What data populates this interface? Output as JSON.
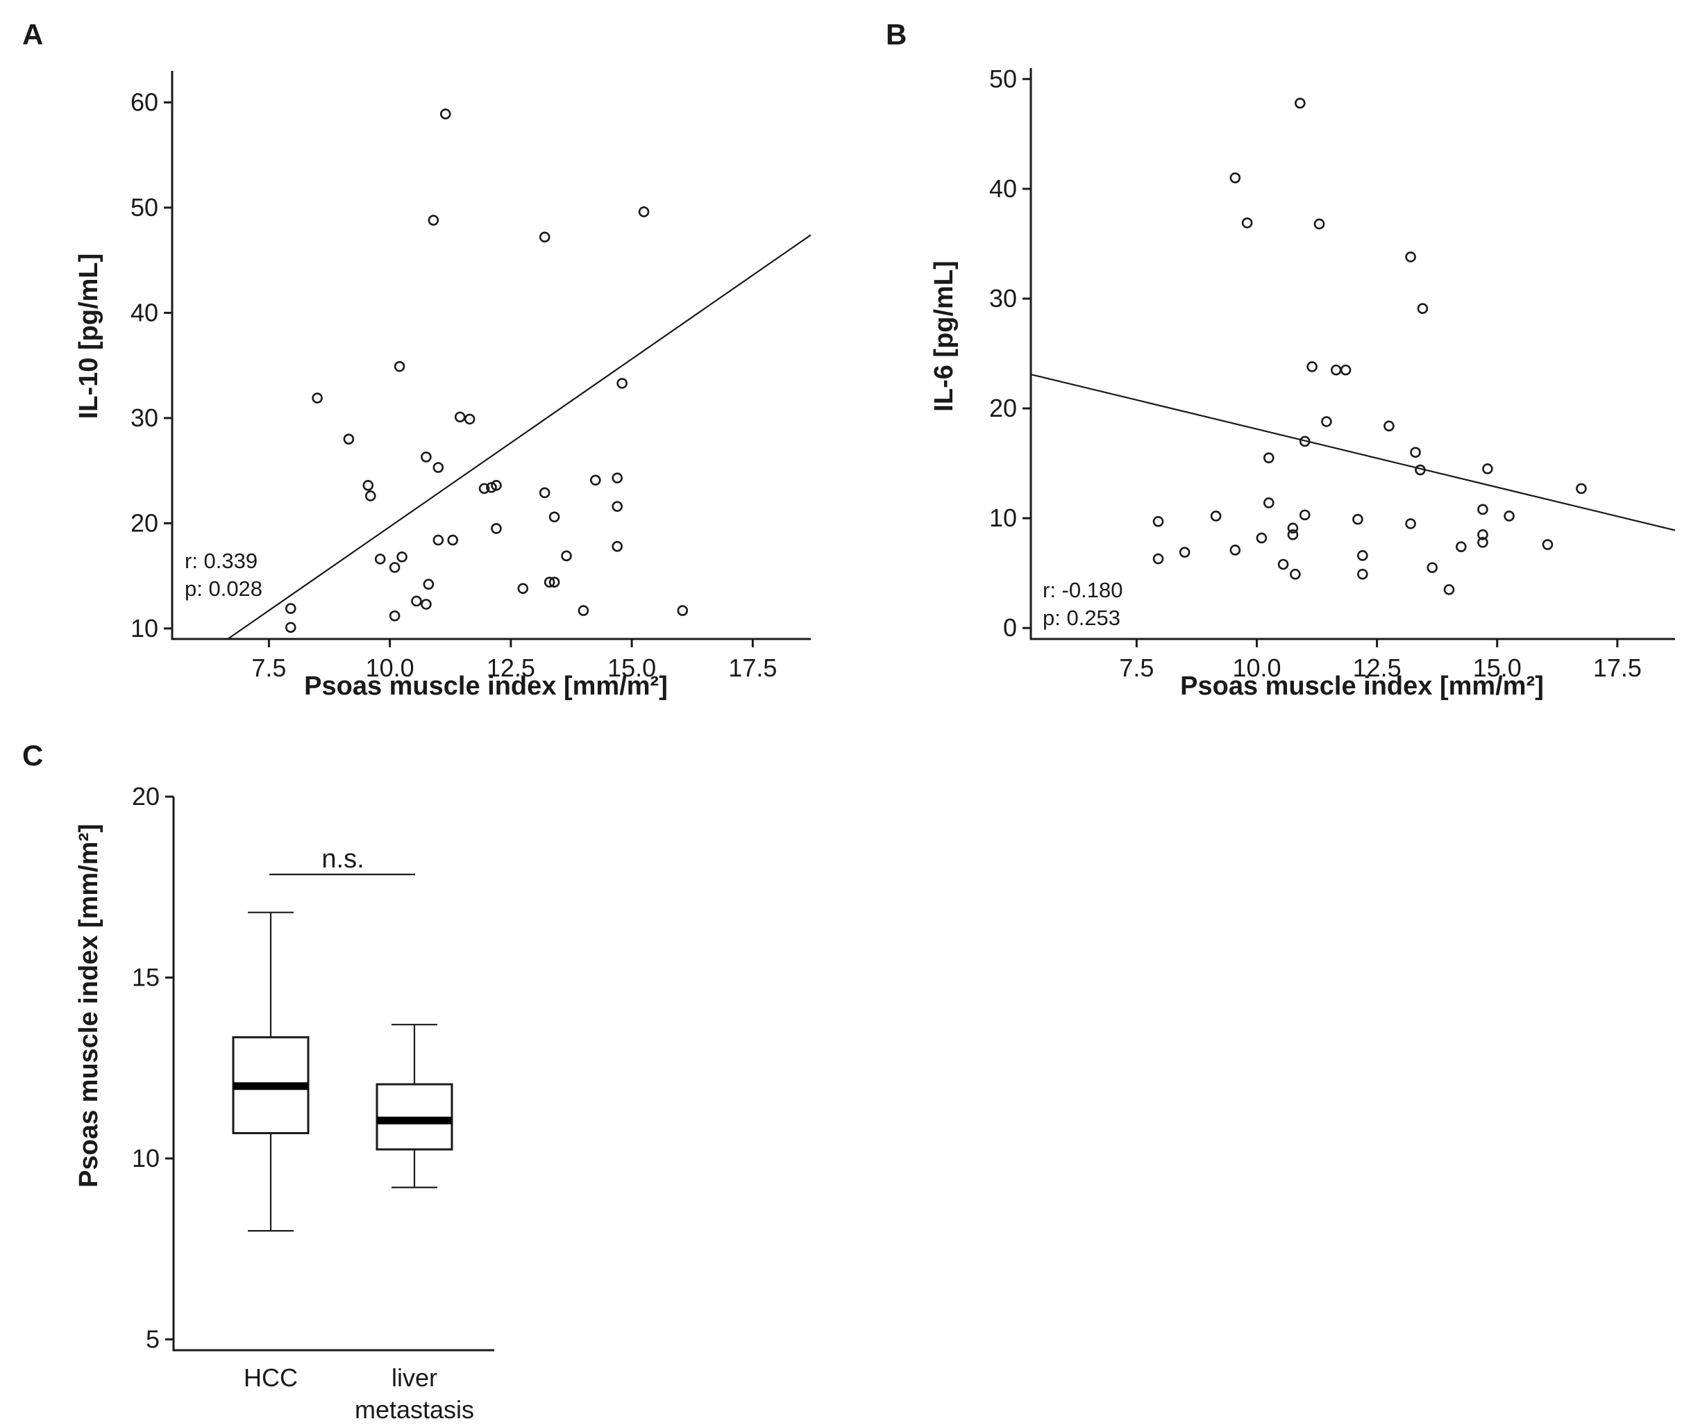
{
  "chart_data": [
    {
      "panel": "A",
      "type": "scatter",
      "xlabel": "Psoas muscle index [mm/m²]",
      "ylabel": "IL-10 [pg/mL]",
      "xlim": [
        5.5,
        18.7
      ],
      "ylim": [
        9,
        63
      ],
      "xticks": [
        7.5,
        10.0,
        12.5,
        15.0,
        17.5
      ],
      "yticks": [
        10,
        20,
        30,
        40,
        50,
        60
      ],
      "grid": false,
      "regression_line": {
        "x": [
          6.65,
          18.7
        ],
        "y": [
          9,
          47.4
        ]
      },
      "annotation": {
        "r": "r: 0.339",
        "p": "p: 0.028"
      },
      "points": [
        [
          7.95,
          11.9
        ],
        [
          7.95,
          10.1
        ],
        [
          8.5,
          31.9
        ],
        [
          9.15,
          28.0
        ],
        [
          9.55,
          23.6
        ],
        [
          9.6,
          22.6
        ],
        [
          9.8,
          16.6
        ],
        [
          10.1,
          11.2
        ],
        [
          10.1,
          15.8
        ],
        [
          10.2,
          34.9
        ],
        [
          10.25,
          16.8
        ],
        [
          10.55,
          12.6
        ],
        [
          10.75,
          26.3
        ],
        [
          10.75,
          12.3
        ],
        [
          10.8,
          14.2
        ],
        [
          10.9,
          48.8
        ],
        [
          11.0,
          25.3
        ],
        [
          11.0,
          18.4
        ],
        [
          11.15,
          58.9
        ],
        [
          11.3,
          18.4
        ],
        [
          11.45,
          30.1
        ],
        [
          11.65,
          29.9
        ],
        [
          11.95,
          23.3
        ],
        [
          12.1,
          23.4
        ],
        [
          12.2,
          23.6
        ],
        [
          12.2,
          19.5
        ],
        [
          12.75,
          13.8
        ],
        [
          13.2,
          47.2
        ],
        [
          13.2,
          22.9
        ],
        [
          13.3,
          14.4
        ],
        [
          13.4,
          20.6
        ],
        [
          13.4,
          14.4
        ],
        [
          13.65,
          16.9
        ],
        [
          14.0,
          11.7
        ],
        [
          14.25,
          24.1
        ],
        [
          14.7,
          24.3
        ],
        [
          14.7,
          21.6
        ],
        [
          14.7,
          17.8
        ],
        [
          14.8,
          33.3
        ],
        [
          15.25,
          49.6
        ],
        [
          16.05,
          11.7
        ]
      ]
    },
    {
      "panel": "B",
      "type": "scatter",
      "xlabel": "Psoas muscle index [mm/m²]",
      "ylabel": "IL-6 [pg/mL]",
      "xlim": [
        5.3,
        18.7
      ],
      "ylim": [
        -1,
        51
      ],
      "xticks": [
        7.5,
        10.0,
        12.5,
        15.0,
        17.5
      ],
      "yticks": [
        0,
        10,
        20,
        30,
        40,
        50
      ],
      "grid": false,
      "regression_line": {
        "x": [
          5.3,
          18.7
        ],
        "y": [
          23.1,
          8.9
        ]
      },
      "annotation": {
        "r": "r: -0.180",
        "p": "p: 0.253"
      },
      "points": [
        [
          7.95,
          9.7
        ],
        [
          7.95,
          6.3
        ],
        [
          8.5,
          6.9
        ],
        [
          9.15,
          10.2
        ],
        [
          9.55,
          41.0
        ],
        [
          9.55,
          7.1
        ],
        [
          9.8,
          36.9
        ],
        [
          10.1,
          8.2
        ],
        [
          10.25,
          15.5
        ],
        [
          10.25,
          11.4
        ],
        [
          10.55,
          5.8
        ],
        [
          10.75,
          9.1
        ],
        [
          10.75,
          8.5
        ],
        [
          10.8,
          4.9
        ],
        [
          10.9,
          47.8
        ],
        [
          11.0,
          17.0
        ],
        [
          11.0,
          10.3
        ],
        [
          11.15,
          23.8
        ],
        [
          11.3,
          36.8
        ],
        [
          11.45,
          18.8
        ],
        [
          11.65,
          23.5
        ],
        [
          11.85,
          23.5
        ],
        [
          12.1,
          9.9
        ],
        [
          12.2,
          6.6
        ],
        [
          12.2,
          4.9
        ],
        [
          12.75,
          18.4
        ],
        [
          13.2,
          33.8
        ],
        [
          13.2,
          9.5
        ],
        [
          13.3,
          16.0
        ],
        [
          13.4,
          14.4
        ],
        [
          13.45,
          29.1
        ],
        [
          13.65,
          5.5
        ],
        [
          14.0,
          3.5
        ],
        [
          14.25,
          7.4
        ],
        [
          14.7,
          10.8
        ],
        [
          14.7,
          8.5
        ],
        [
          14.7,
          7.8
        ],
        [
          14.8,
          14.5
        ],
        [
          15.25,
          10.2
        ],
        [
          16.05,
          7.6
        ],
        [
          16.75,
          12.7
        ]
      ]
    },
    {
      "panel": "C",
      "type": "box",
      "xlabel": "",
      "ylabel": "Psoas muscle index [mm/m²]",
      "ylim": [
        4.7,
        20
      ],
      "yticks": [
        5,
        10,
        15,
        20
      ],
      "categories": [
        "HCC",
        "liver metastasis"
      ],
      "boxes": [
        {
          "name": "HCC",
          "whisker_low": 8.0,
          "q1": 10.7,
          "median": 12.0,
          "q3": 13.35,
          "whisker_high": 16.8
        },
        {
          "name": "liver metastasis",
          "whisker_low": 9.2,
          "q1": 10.25,
          "median": 11.05,
          "q3": 12.05,
          "whisker_high": 13.7
        }
      ],
      "significance": {
        "label": "n.s.",
        "y": 17.85
      }
    }
  ],
  "panels": {
    "a": "A",
    "b": "B",
    "c": "C"
  },
  "category_labels": {
    "hcc": "HCC",
    "liver_line1": "liver",
    "liver_line2": "metastasis"
  }
}
